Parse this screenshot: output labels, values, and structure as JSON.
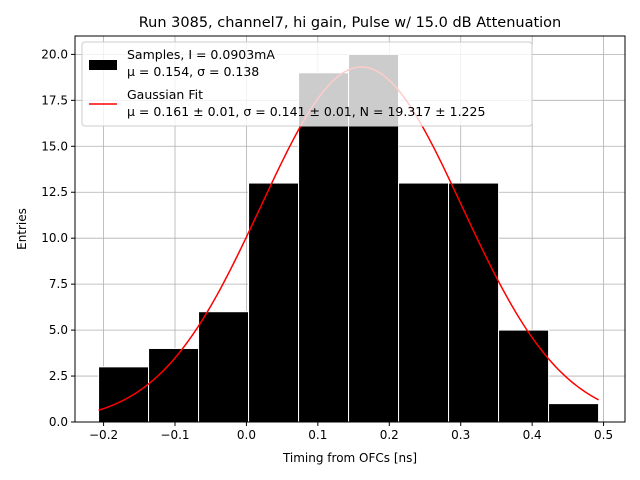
{
  "chart_data": {
    "type": "bar",
    "title": "Run 3085, channel7, hi gain, Pulse w/ 15.0 dB Attenuation",
    "xlabel": "Timing from OFCs [ns]",
    "ylabel": "Entries",
    "xlim": [
      -0.24,
      0.53
    ],
    "ylim": [
      0,
      21
    ],
    "grid": true,
    "legend_position": "top-left",
    "xticks": [
      -0.2,
      -0.1,
      0.0,
      0.1,
      0.2,
      0.3,
      0.4,
      0.5
    ],
    "xtick_labels": [
      "−0.2",
      "−0.1",
      "0.0",
      "0.1",
      "0.2",
      "0.3",
      "0.4",
      "0.5"
    ],
    "yticks": [
      0,
      2.5,
      5,
      7.5,
      10,
      12.5,
      15,
      17.5,
      20
    ],
    "ytick_labels": [
      "0.0",
      "2.5",
      "5.0",
      "7.5",
      "10.0",
      "12.5",
      "15.0",
      "17.5",
      "20.0"
    ],
    "histogram": {
      "bin_edges": [
        -0.207,
        -0.137,
        -0.067,
        0.003,
        0.073,
        0.143,
        0.213,
        0.283,
        0.353,
        0.423,
        0.493
      ],
      "counts": [
        3,
        4,
        6,
        13,
        19,
        20,
        13,
        13,
        5,
        1
      ],
      "color": "#000000",
      "edgecolor": "#ffffff"
    },
    "fit": {
      "mu": 0.161,
      "sigma": 0.141,
      "N": 19.317,
      "x_range": [
        -0.207,
        0.493
      ],
      "color": "#ff0000"
    },
    "legend": [
      {
        "kind": "patch",
        "color": "#000000",
        "line1": "Samples, I = 0.0903mA",
        "line2": "μ = 0.154, σ = 0.138"
      },
      {
        "kind": "line",
        "color": "#ff0000",
        "line1": "Gaussian Fit",
        "line2": "μ = 0.161 ± 0.01, σ = 0.141 ± 0.01, N = 19.317 ± 1.225"
      }
    ]
  }
}
